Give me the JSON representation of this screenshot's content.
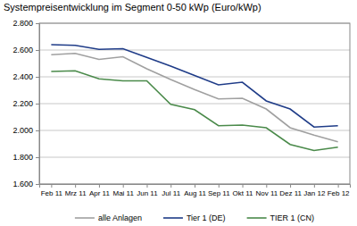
{
  "chart_data": {
    "type": "line",
    "title": "Systempreisentwicklung im Segment 0-50 kWp (Euro/kWp)",
    "categories": [
      "Feb 11",
      "Mrz 11",
      "Apr 11",
      "Mai 11",
      "Jun 11",
      "Jul 11",
      "Aug 11",
      "Sep 11",
      "Okt 11",
      "Nov 11",
      "Dez 11",
      "Jan 12",
      "Feb 12"
    ],
    "series": [
      {
        "name": "alle Anlagen",
        "color": "#a0a0a0",
        "values": [
          2565,
          2575,
          2530,
          2550,
          2460,
          2380,
          2305,
          2235,
          2240,
          2160,
          2020,
          1965,
          1915
        ]
      },
      {
        "name": "Tier 1 (DE)",
        "color": "#1f3c88",
        "values": [
          2640,
          2635,
          2605,
          2610,
          2545,
          2480,
          2410,
          2340,
          2360,
          2220,
          2160,
          2025,
          2035
        ]
      },
      {
        "name": "TIER 1 (CN)",
        "color": "#4a8a4a",
        "values": [
          2440,
          2445,
          2385,
          2370,
          2370,
          2195,
          2155,
          2035,
          2040,
          2020,
          1895,
          1850,
          1875
        ]
      }
    ],
    "ylim": [
      1600,
      2800
    ],
    "yticks": [
      {
        "value": 1600,
        "label": "1.600"
      },
      {
        "value": 1800,
        "label": "1.800"
      },
      {
        "value": 2000,
        "label": "2.000"
      },
      {
        "value": 2200,
        "label": "2.200"
      },
      {
        "value": 2400,
        "label": "2.400"
      },
      {
        "value": 2600,
        "label": "2.600"
      },
      {
        "value": 2800,
        "label": "2.800"
      }
    ],
    "grid": true,
    "legend": "bottom"
  }
}
